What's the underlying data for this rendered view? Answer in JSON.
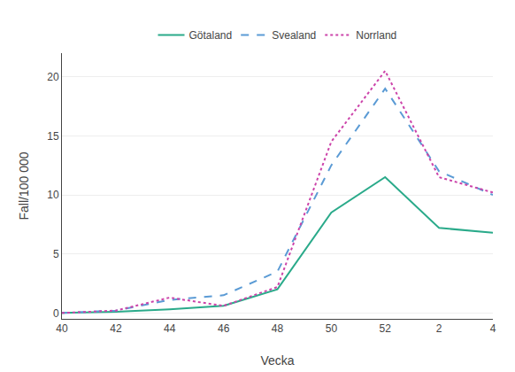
{
  "chart_data": {
    "type": "line",
    "xlabel": "Vecka",
    "ylabel": "Fall/100 000",
    "categories": [
      "40",
      "42",
      "44",
      "46",
      "48",
      "50",
      "52",
      "2",
      "4"
    ],
    "series": [
      {
        "name": "Götaland",
        "color": "#2aaa8a",
        "line_style": "solid",
        "values": [
          0.0,
          0.1,
          0.3,
          0.6,
          2.0,
          8.5,
          11.5,
          7.2,
          6.8
        ]
      },
      {
        "name": "Svealand",
        "color": "#5b9bd5",
        "line_style": "dashed",
        "values": [
          0.0,
          0.2,
          1.1,
          1.5,
          3.5,
          12.5,
          19.0,
          12.0,
          10.0
        ]
      },
      {
        "name": "Norrland",
        "color": "#cc44aa",
        "line_style": "dotted",
        "values": [
          0.0,
          0.2,
          1.3,
          0.6,
          2.2,
          14.5,
          20.5,
          11.5,
          10.2
        ]
      }
    ],
    "ylim": [
      -0.5,
      22
    ],
    "yticks": [
      0,
      5,
      10,
      15,
      20
    ],
    "grid": true,
    "legend": "top"
  }
}
